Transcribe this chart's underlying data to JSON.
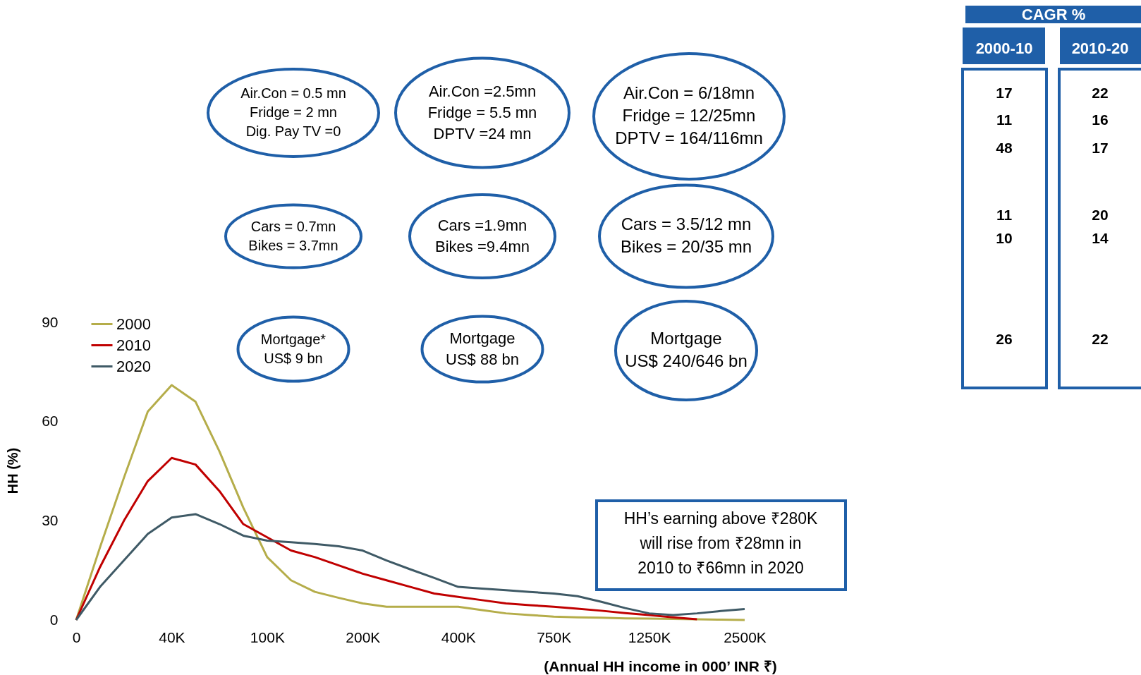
{
  "chart_data": {
    "type": "line",
    "xlabel": "(Annual HH income in 000’ INR ₹)",
    "ylabel": "HH (%)",
    "categories": [
      "0",
      null,
      null,
      null,
      "40K",
      null,
      null,
      null,
      "100K",
      null,
      null,
      null,
      "200K",
      null,
      null,
      null,
      "400K",
      null,
      null,
      null,
      "750K",
      null,
      null,
      null,
      "1250K",
      null,
      null,
      null,
      "2500K"
    ],
    "ylim": [
      0,
      90
    ],
    "yticks": [
      0,
      30,
      60,
      90
    ],
    "grid": false,
    "legend": "top left",
    "marker": "none",
    "line_style": "solid",
    "series": [
      {
        "name": "2000",
        "color": "#b5ad4a",
        "values": [
          0,
          22,
          43,
          63,
          71,
          66,
          51,
          34,
          19,
          12,
          8.5,
          6.7,
          5,
          4,
          4,
          4,
          4,
          3,
          2,
          1.5,
          1,
          0.8,
          0.7,
          0.5,
          0.4,
          0.3,
          0.2,
          0.1,
          0
        ]
      },
      {
        "name": "2010",
        "color": "#c00000",
        "values": [
          0,
          16,
          30,
          42,
          49,
          47,
          39,
          29,
          25,
          21,
          19,
          16.5,
          14,
          12,
          10,
          8,
          7,
          6,
          5,
          4.5,
          4,
          3.4,
          2.8,
          2.1,
          1.5,
          0.8,
          0.2,
          null,
          null
        ]
      },
      {
        "name": "2020",
        "color": "#3f5a66",
        "values": [
          0,
          10,
          18,
          26,
          31,
          32,
          29,
          25.5,
          24,
          23.5,
          23,
          22.3,
          21,
          18,
          15.3,
          12.7,
          10,
          9.5,
          9,
          8.5,
          8,
          7.2,
          5.5,
          3.6,
          2,
          1.5,
          2,
          2.7,
          3.3
        ]
      }
    ],
    "annotations": [
      "Air.Con = 0.5 mn\nFridge = 2 mn\nDig. Pay TV =0",
      "Air.Con =2.5mn\nFridge = 5.5 mn\nDPTV =24 mn",
      "Air.Con = 6/18mn\nFridge = 12/25mn\nDPTV = 164/116mn",
      "Cars = 0.7mn\nBikes = 3.7mn",
      "Cars =1.9mn\nBikes =9.4mn",
      "Cars = 3.5/12 mn\nBikes = 20/35 mn",
      "Mortgage*\nUS$ 9 bn",
      "Mortgage\nUS$ 88 bn",
      "Mortgage\nUS$ 240/646 bn",
      "HH’s earning above ₹280K\nwill rise from ₹28mn in\n2010 to ₹66mn in 2020",
      "CAGR %",
      "2000-10",
      "2010-20",
      "17",
      "11",
      "48",
      "11",
      "10",
      "26",
      "22",
      "16",
      "17",
      "20",
      "14",
      "22"
    ]
  }
}
